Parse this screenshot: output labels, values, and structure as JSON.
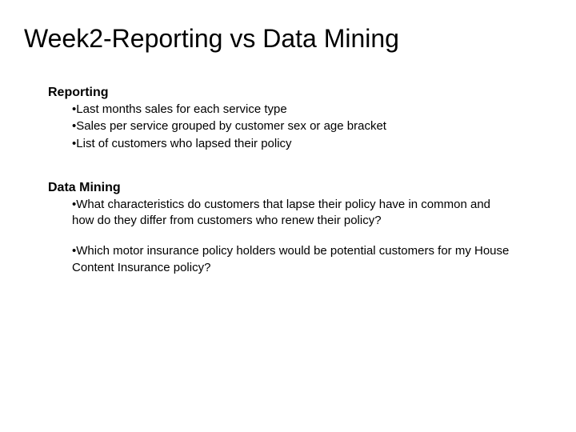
{
  "slide": {
    "title": "Week2-Reporting vs Data Mining",
    "title_fontsize": 32,
    "title_weight": 400,
    "background_color": "#ffffff",
    "text_color": "#000000",
    "sections": [
      {
        "heading": "Reporting",
        "heading_fontsize": 16,
        "heading_weight": 700,
        "bullets": [
          "Last months sales for each service type",
          "Sales per service grouped by customer sex or age bracket",
          "List of customers who lapsed their policy"
        ],
        "bullet_fontsize": 15,
        "bullet_marker": "•"
      },
      {
        "heading": "Data Mining",
        "heading_fontsize": 16,
        "heading_weight": 700,
        "bullets": [
          "What characteristics do customers that lapse their policy have in common and how do they differ from customers who renew their policy?",
          "Which motor insurance policy holders would be potential customers for my House Content Insurance policy?"
        ],
        "bullet_fontsize": 15,
        "bullet_marker": "•",
        "bullet_spacing": "large"
      }
    ]
  }
}
